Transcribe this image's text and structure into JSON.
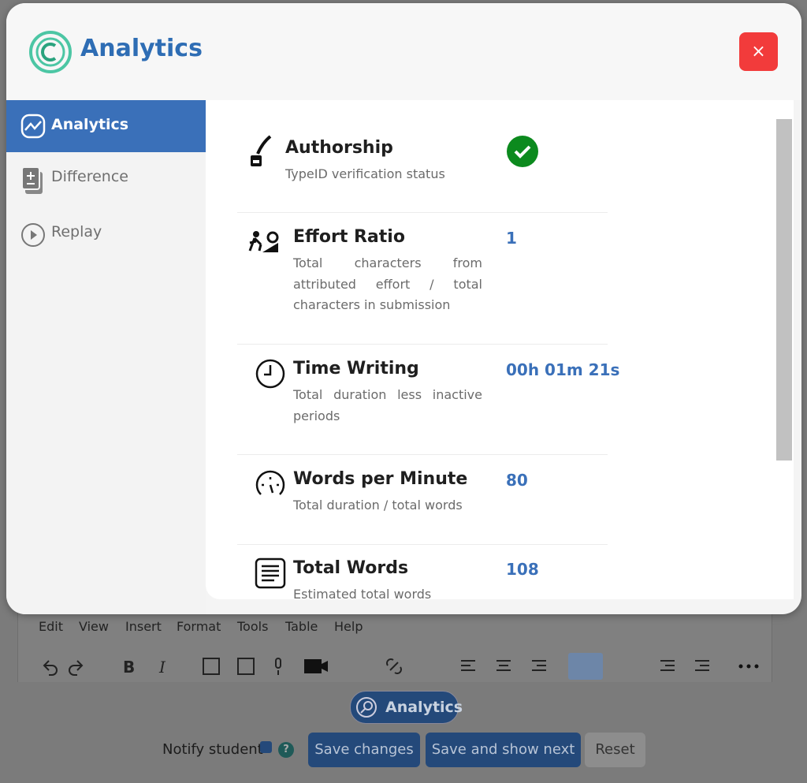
{
  "modal": {
    "title": "Analytics",
    "close": "×"
  },
  "sidebar": [
    "Analytics",
    "Difference",
    "Replay"
  ],
  "metrics": [
    {
      "title": "Authorship",
      "description": "TypeID verification status"
    },
    {
      "title": "Effort Ratio",
      "description": "Total characters from attributed effort / total characters in submission",
      "value": 1
    },
    {
      "title": "Time Writing",
      "description": "Total duration less inactive periods",
      "value": "00h 01m 21s"
    },
    {
      "title": "Words per Minute",
      "description": "Total duration / total words",
      "value": 80
    },
    {
      "title": "Total Words",
      "description": "Estimated total words",
      "value": 108
    }
  ],
  "editor": {
    "menu": [
      "Edit",
      "View",
      "Insert",
      "Format",
      "Tools",
      "Table",
      "Help"
    ]
  },
  "footer": {
    "analytics_button": "Analytics",
    "notify_label": "Notify student",
    "buttons": [
      "Save changes",
      "Save and show next",
      "Reset"
    ]
  }
}
